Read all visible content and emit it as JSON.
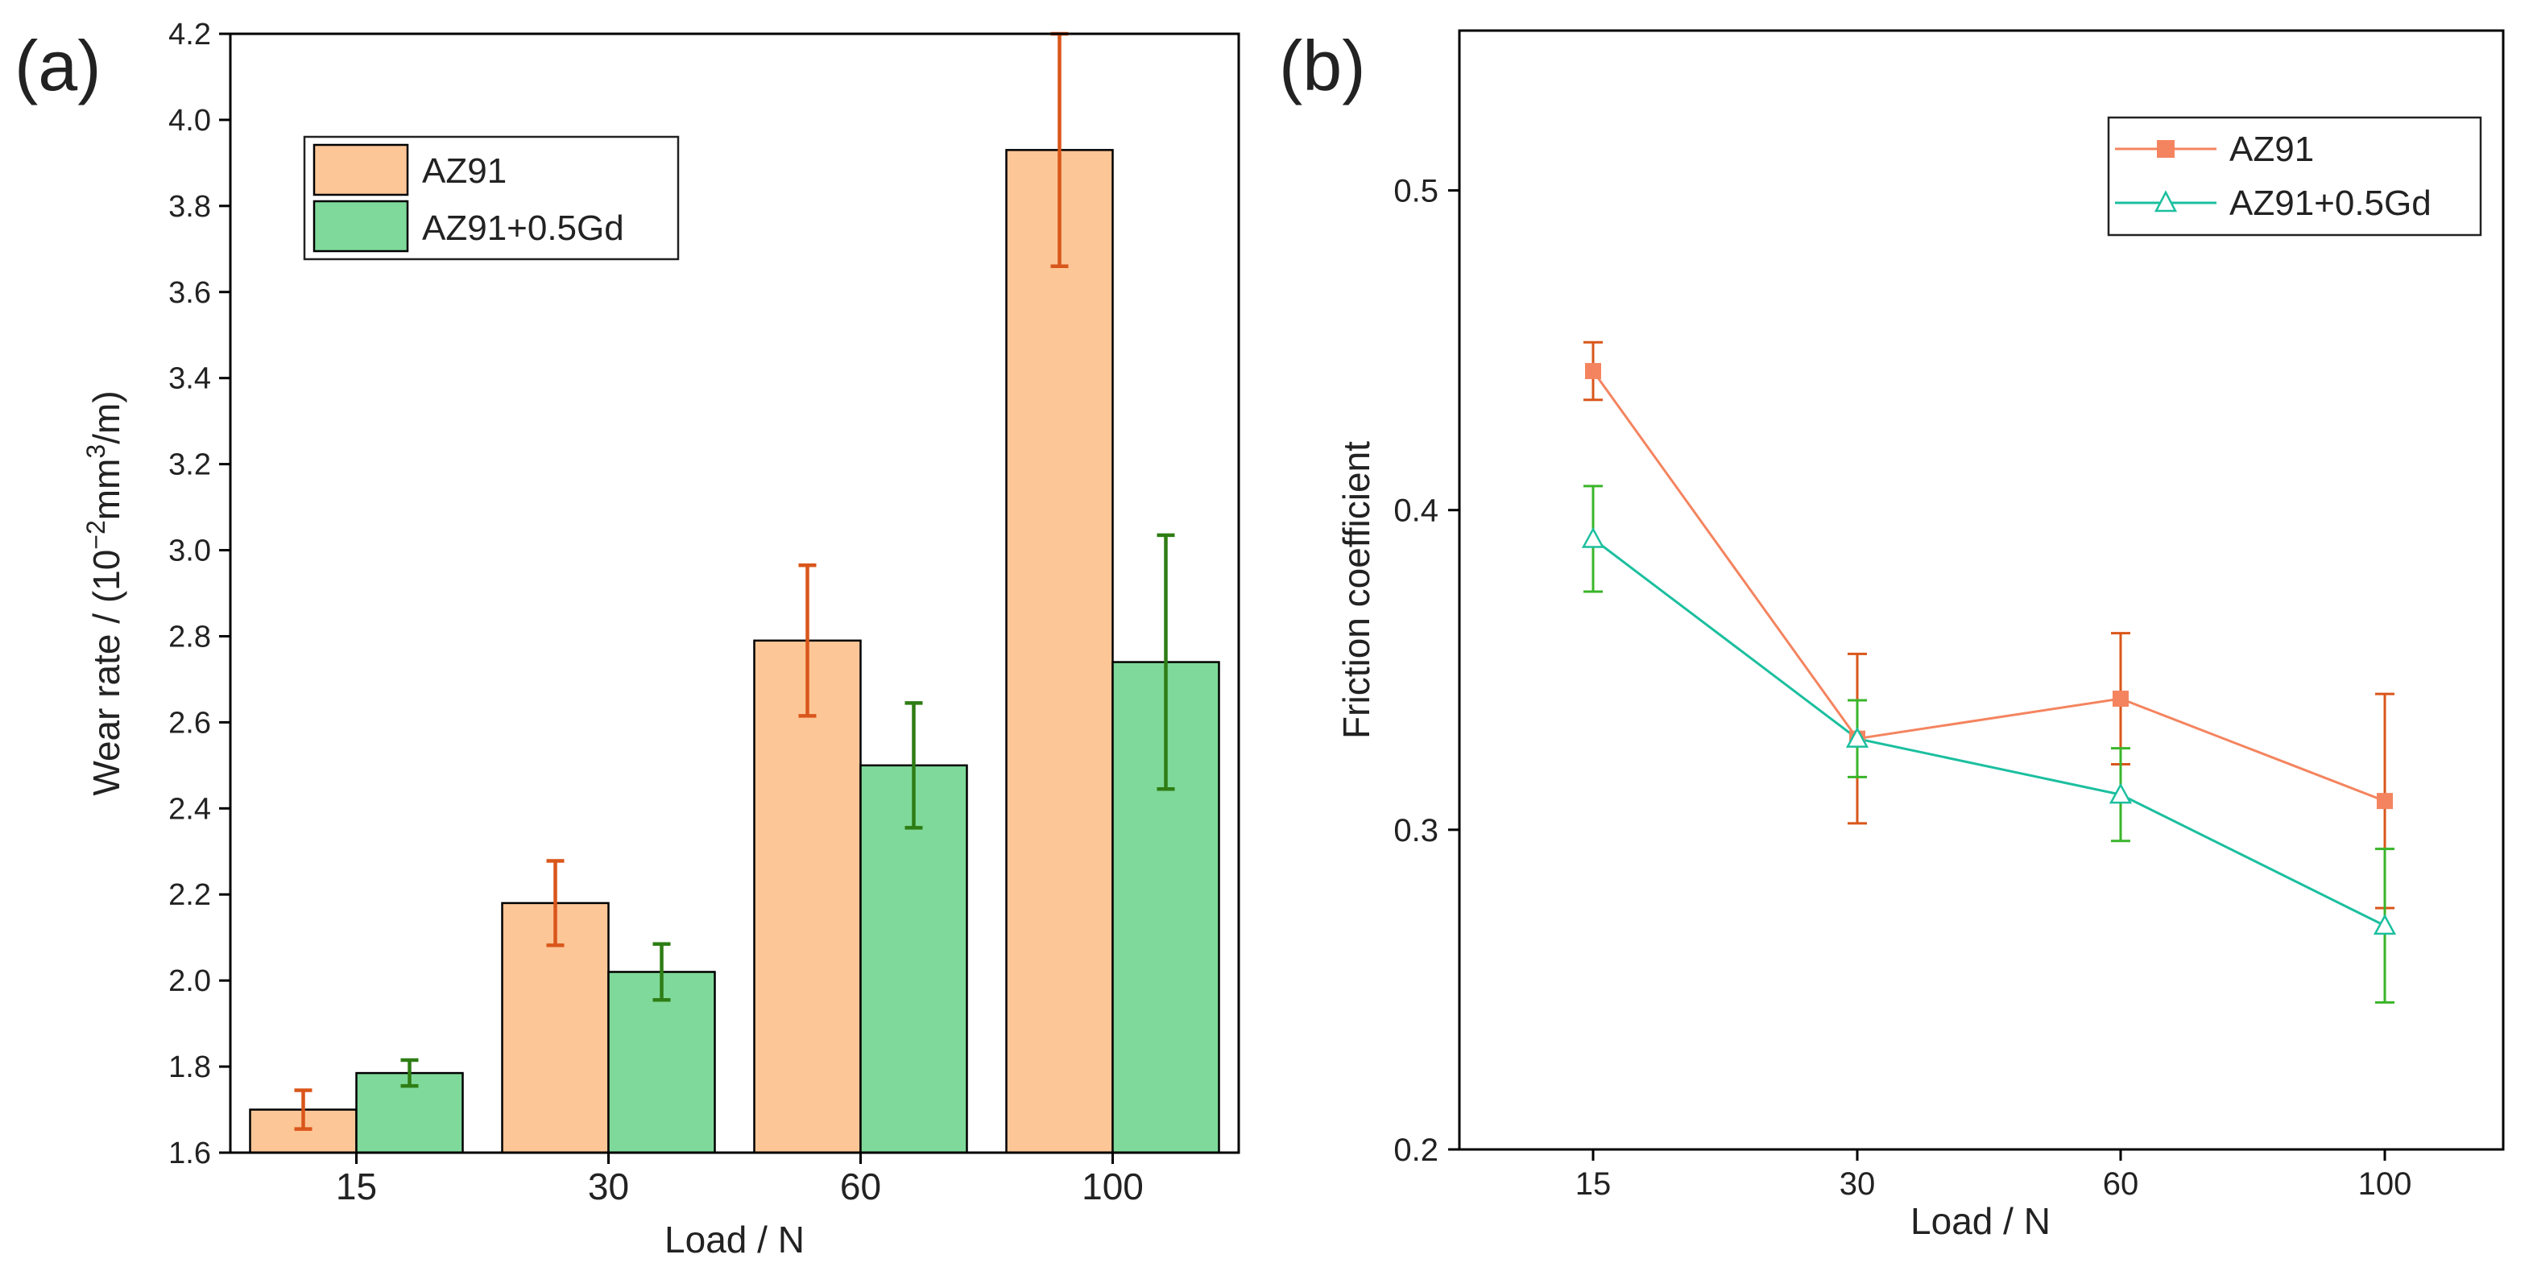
{
  "chart_data": [
    {
      "type": "bar",
      "panel_label": "(a)",
      "categories": [
        "15",
        "30",
        "60",
        "100"
      ],
      "xlabel": "Load / N",
      "ylabel": {
        "prefix": "Wear rate / (10",
        "exp1": "−2",
        "mid": "mm",
        "exp2": "3",
        "suffix": "/m)"
      },
      "ylim": [
        1.6,
        4.2
      ],
      "yticks": [
        "1.6",
        "1.8",
        "2.0",
        "2.2",
        "2.4",
        "2.6",
        "2.8",
        "3.0",
        "3.2",
        "3.4",
        "3.6",
        "3.8",
        "4.0",
        "4.2"
      ],
      "grid": false,
      "legend_position": "top-left",
      "series": [
        {
          "name": "AZ91",
          "values": [
            1.7,
            2.18,
            2.79,
            3.93
          ],
          "errors": [
            0.045,
            0.098,
            0.175,
            0.27
          ],
          "color": "#fdc697",
          "error_color": "#d9561a"
        },
        {
          "name": "AZ91+0.5Gd",
          "values": [
            1.785,
            2.02,
            2.5,
            2.74
          ],
          "errors": [
            0.03,
            0.065,
            0.145,
            0.295
          ],
          "color": "#7fd99a",
          "error_color": "#2e7d14"
        }
      ]
    },
    {
      "type": "line",
      "panel_label": "(b)",
      "categories": [
        "15",
        "30",
        "60",
        "100"
      ],
      "xlabel": "Load / N",
      "ylabel": "Friction coefficient",
      "ylim": [
        0.2,
        0.55
      ],
      "yticks": [
        "0.2",
        "0.3",
        "0.4",
        "0.5"
      ],
      "grid": false,
      "legend_position": "top-right",
      "series": [
        {
          "name": "AZ91",
          "values": [
            0.4435,
            0.3285,
            0.341,
            0.309
          ],
          "errors": [
            0.009,
            0.0265,
            0.0205,
            0.0335
          ],
          "color": "#f4845f",
          "error_color": "#d9561a",
          "marker": "filled-square"
        },
        {
          "name": "AZ91+0.5Gd",
          "values": [
            0.391,
            0.3285,
            0.311,
            0.27
          ],
          "errors": [
            0.0165,
            0.012,
            0.0145,
            0.024
          ],
          "color": "#1bbf9f",
          "error_color": "#3ab52a",
          "marker": "open-triangle"
        }
      ]
    }
  ]
}
